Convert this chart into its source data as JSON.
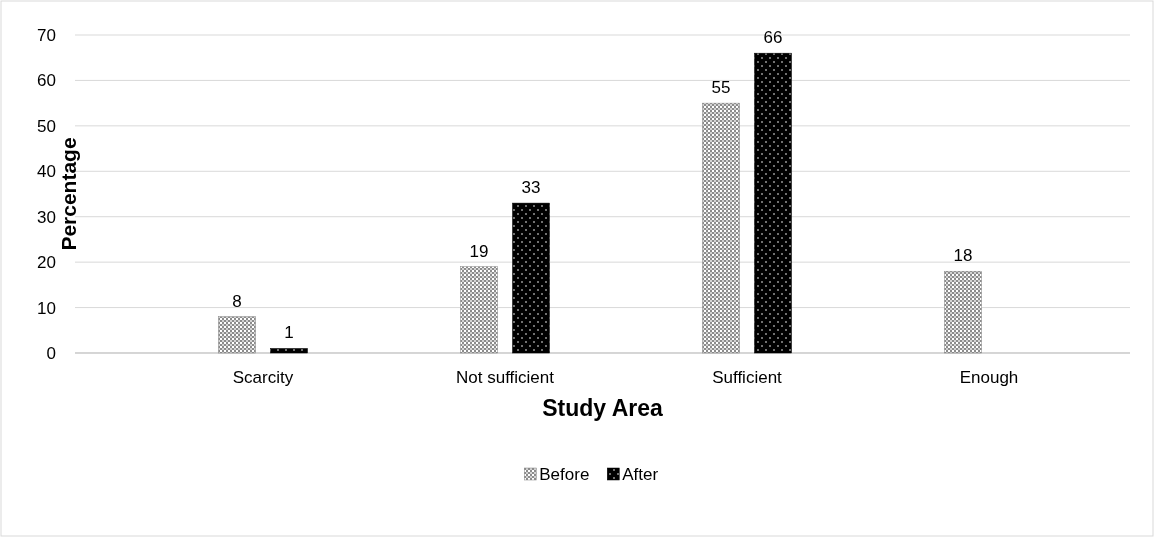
{
  "chart_data": {
    "type": "bar",
    "xlabel": "Study Area",
    "ylabel": "Percentage",
    "categories": [
      "Scarcity",
      "Not sufficient",
      "Sufficient",
      "Enough"
    ],
    "series": [
      {
        "name": "Before",
        "color": "#808080",
        "values": [
          8,
          19,
          55,
          18
        ]
      },
      {
        "name": "After",
        "color": "#000000",
        "values": [
          1,
          33,
          66,
          null
        ]
      }
    ],
    "ylim": [
      0,
      70
    ],
    "yticks": [
      0,
      10,
      20,
      30,
      40,
      50,
      60,
      70
    ],
    "grid": "y",
    "legend": "bottom",
    "data_labels": true
  }
}
